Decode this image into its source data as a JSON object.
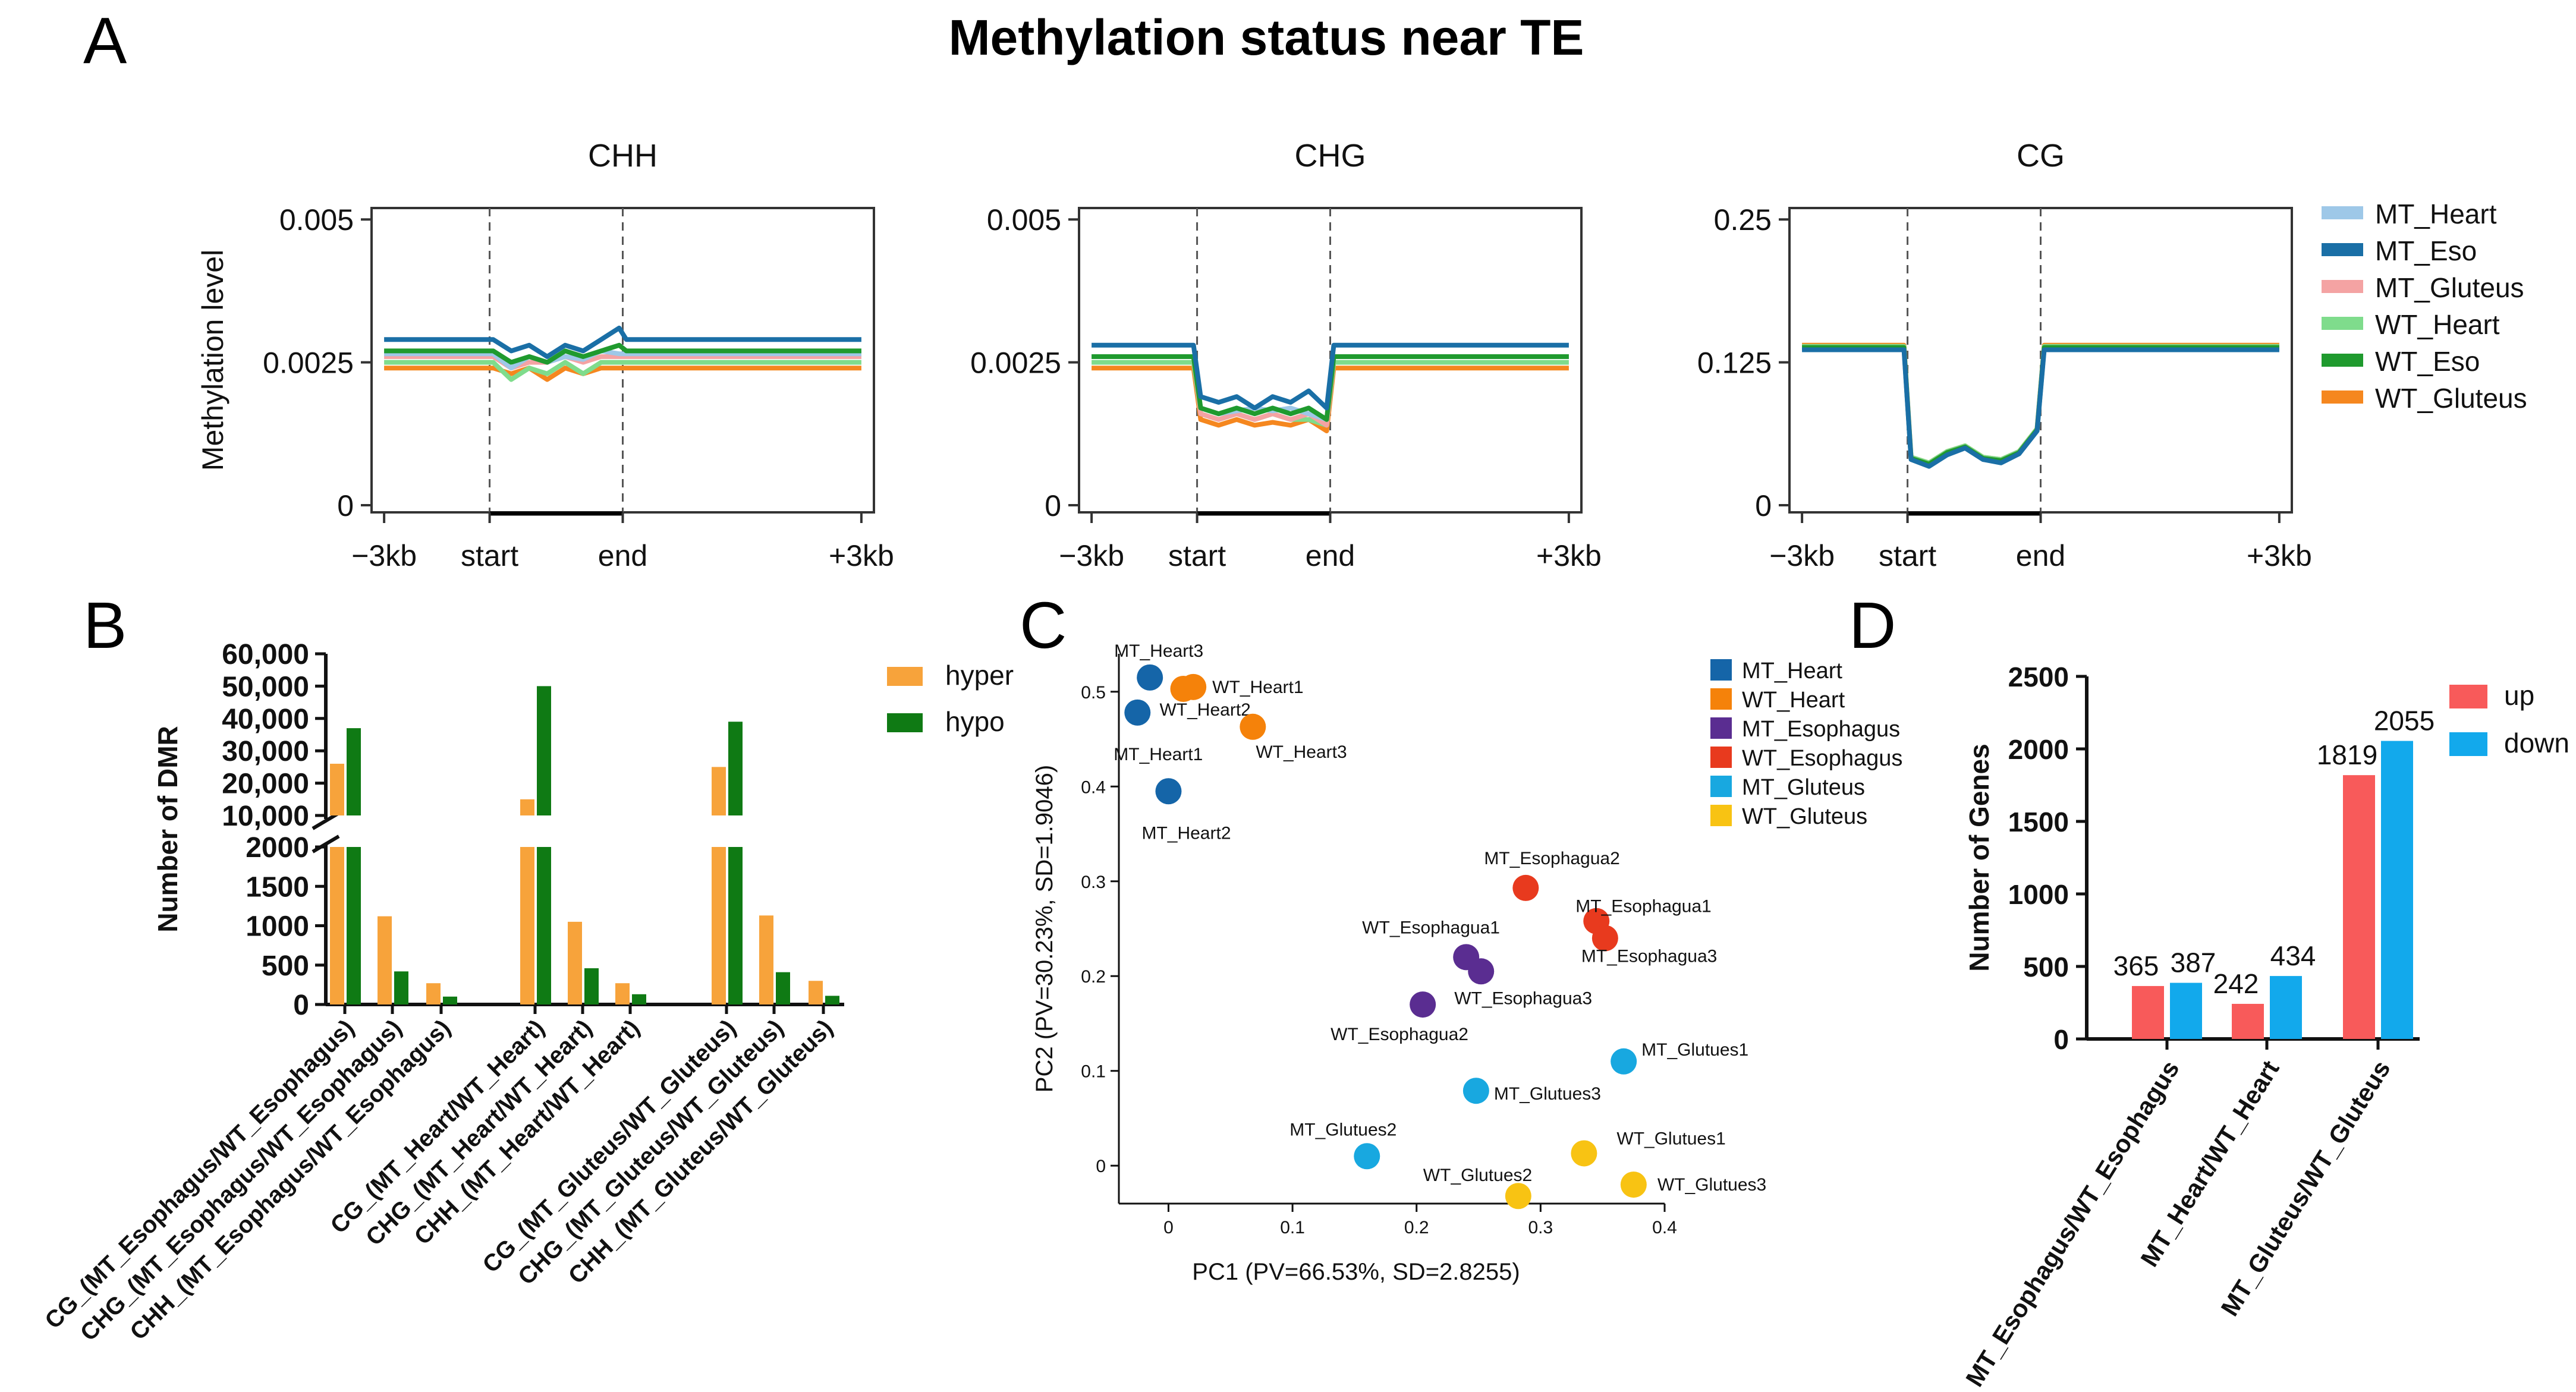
{
  "title": "Methylation status near TE",
  "panel_letters": {
    "A": "A",
    "B": "B",
    "C": "C",
    "D": "D"
  },
  "colors": {
    "MT_Heart": "#9ec8e8",
    "MT_Eso": "#1a6fa6",
    "MT_Gluteus": "#f4a3a3",
    "WT_Heart": "#7fdc8c",
    "WT_Eso": "#1f9a2e",
    "WT_Gluteus": "#f5871f",
    "hyper": "#f7a33b",
    "hypo": "#0f7a14",
    "pca_MT_Heart": "#1565a8",
    "pca_WT_Heart": "#f5820a",
    "pca_MT_Esophagus": "#5a2d91",
    "pca_WT_Esophagus": "#e83a1e",
    "pca_MT_Gluteus": "#18a8e0",
    "pca_WT_Gluteus": "#f8c313",
    "up": "#f85a5a",
    "down": "#12a9ec"
  },
  "chart_data": [
    {
      "id": "A1",
      "type": "line",
      "title": "CHH",
      "ylabel": "Methylation level",
      "x_ticks": [
        "−3kb",
        "start",
        "end",
        "+3kb"
      ],
      "y_ticks": [
        "0.005",
        "0.0025",
        "0"
      ],
      "ylim": [
        0,
        0.0052
      ],
      "series": [
        {
          "name": "MT_Heart",
          "flank": 0.00265,
          "body": [
            0.00265,
            0.0024,
            0.0026,
            0.0025,
            0.0026,
            0.00255,
            0.0027,
            0.00265
          ]
        },
        {
          "name": "MT_Eso",
          "flank": 0.0029,
          "body": [
            0.0029,
            0.0027,
            0.0028,
            0.0026,
            0.0028,
            0.0027,
            0.0029,
            0.0031
          ]
        },
        {
          "name": "MT_Gluteus",
          "flank": 0.0026,
          "body": [
            0.0026,
            0.0024,
            0.0025,
            0.0025,
            0.0026,
            0.0025,
            0.0026,
            0.0026
          ]
        },
        {
          "name": "WT_Heart",
          "flank": 0.0025,
          "body": [
            0.0025,
            0.0022,
            0.0024,
            0.0023,
            0.0025,
            0.0023,
            0.0025,
            0.0025
          ]
        },
        {
          "name": "WT_Eso",
          "flank": 0.0027,
          "body": [
            0.0027,
            0.0025,
            0.0026,
            0.0025,
            0.0027,
            0.0026,
            0.0027,
            0.0028
          ]
        },
        {
          "name": "WT_Gluteus",
          "flank": 0.0024,
          "body": [
            0.0024,
            0.0023,
            0.0024,
            0.0022,
            0.0024,
            0.0023,
            0.0024,
            0.0024
          ]
        }
      ]
    },
    {
      "id": "A2",
      "type": "line",
      "title": "CHG",
      "ylabel": "",
      "x_ticks": [
        "−3kb",
        "start",
        "end",
        "+3kb"
      ],
      "y_ticks": [
        "0.005",
        "0.0025",
        "0"
      ],
      "ylim": [
        0,
        0.0052
      ],
      "series": [
        {
          "name": "MT_Heart",
          "flank": 0.0026,
          "body": [
            0.0017,
            0.0016,
            0.00165,
            0.0017,
            0.00165,
            0.0017,
            0.0016,
            0.0015
          ]
        },
        {
          "name": "MT_Eso",
          "flank": 0.0028,
          "body": [
            0.0019,
            0.0018,
            0.0019,
            0.0017,
            0.0019,
            0.0018,
            0.002,
            0.0017
          ]
        },
        {
          "name": "MT_Gluteus",
          "flank": 0.0026,
          "body": [
            0.0016,
            0.0015,
            0.0016,
            0.0015,
            0.0016,
            0.0015,
            0.0016,
            0.0014
          ]
        },
        {
          "name": "WT_Heart",
          "flank": 0.0025,
          "body": [
            0.0016,
            0.0015,
            0.0016,
            0.0015,
            0.0016,
            0.0015,
            0.0015,
            0.0014
          ]
        },
        {
          "name": "WT_Eso",
          "flank": 0.0026,
          "body": [
            0.0017,
            0.0016,
            0.0017,
            0.0016,
            0.0017,
            0.0016,
            0.0017,
            0.0015
          ]
        },
        {
          "name": "WT_Gluteus",
          "flank": 0.0024,
          "body": [
            0.0015,
            0.0014,
            0.0015,
            0.0014,
            0.00145,
            0.0014,
            0.0015,
            0.0013
          ]
        }
      ]
    },
    {
      "id": "A3",
      "type": "line",
      "title": "CG",
      "ylabel": "",
      "x_ticks": [
        "−3kb",
        "start",
        "end",
        "+3kb"
      ],
      "y_ticks": [
        "0.25",
        "0.125",
        "0"
      ],
      "ylim": [
        0,
        0.26
      ],
      "series": [
        {
          "name": "MT_Heart",
          "flank": 0.137,
          "body": [
            0.04,
            0.035,
            0.045,
            0.05,
            0.04,
            0.038,
            0.045,
            0.065
          ]
        },
        {
          "name": "MT_Eso",
          "flank": 0.136,
          "body": [
            0.04,
            0.034,
            0.044,
            0.05,
            0.04,
            0.037,
            0.045,
            0.065
          ]
        },
        {
          "name": "MT_Gluteus",
          "flank": 0.138,
          "body": [
            0.041,
            0.036,
            0.046,
            0.051,
            0.041,
            0.039,
            0.046,
            0.066
          ]
        },
        {
          "name": "WT_Heart",
          "flank": 0.139,
          "body": [
            0.042,
            0.037,
            0.047,
            0.052,
            0.042,
            0.04,
            0.047,
            0.067
          ]
        },
        {
          "name": "WT_Eso",
          "flank": 0.138,
          "body": [
            0.041,
            0.036,
            0.046,
            0.051,
            0.041,
            0.039,
            0.046,
            0.066
          ]
        },
        {
          "name": "WT_Gluteus",
          "flank": 0.14,
          "body": [
            0.042,
            0.037,
            0.047,
            0.052,
            0.042,
            0.04,
            0.047,
            0.067
          ]
        }
      ]
    },
    {
      "id": "B",
      "type": "bar",
      "ylabel": "Number of DMR",
      "y_ticks_upper": [
        "60,000",
        "50,000",
        "40,000",
        "30,000",
        "20,000",
        "10,000"
      ],
      "y_ticks_lower": [
        "2000",
        "1500",
        "1000",
        "500",
        "0"
      ],
      "categories": [
        "CG_(MT_Esophagus/WT_Esophagus)",
        "CHG_(MT_Esophagus/WT_Esophagus)",
        "CHH_(MT_Esophagus/WT_Esophagus)",
        "CG_(MT_Heart/WT_Heart)",
        "CHG_(MT_Heart/WT_Heart)",
        "CHH_(MT_Heart/WT_Heart)",
        "CG_(MT_Gluteus/WT_Gluteus)",
        "CHG_(MT_Gluteus/WT_Gluteus)",
        "CHH_(MT_Gluteus/WT_Gluteus)"
      ],
      "series": [
        {
          "name": "hyper",
          "values": [
            26000,
            1120,
            270,
            15000,
            1050,
            270,
            25000,
            1130,
            300
          ]
        },
        {
          "name": "hypo",
          "values": [
            37000,
            420,
            100,
            50000,
            460,
            130,
            39000,
            410,
            110
          ]
        }
      ]
    },
    {
      "id": "C",
      "type": "scatter",
      "xlabel": "PC1 (PV=66.53%, SD=2.8255)",
      "ylabel": "PC2 (PV=30.23%, SD=1.9046)",
      "x_ticks": [
        "0",
        "0.1",
        "0.2",
        "0.3",
        "0.4"
      ],
      "y_ticks": [
        "0",
        "0.1",
        "0.2",
        "0.3",
        "0.4",
        "0.5"
      ],
      "xlim": [
        -0.04,
        0.4
      ],
      "ylim": [
        -0.04,
        0.54
      ],
      "legend": [
        "MT_Heart",
        "WT_Heart",
        "MT_Esophagus",
        "WT_Esophagus",
        "MT_Gluteus",
        "WT_Gluteus"
      ],
      "points": [
        {
          "label": "MT_Heart3",
          "group": "MT_Heart",
          "x": -0.015,
          "y": 0.515
        },
        {
          "label": "MT_Heart1",
          "group": "MT_Heart",
          "x": -0.025,
          "y": 0.478
        },
        {
          "label": "MT_Heart2",
          "group": "MT_Heart",
          "x": 0.0,
          "y": 0.395
        },
        {
          "label": "WT_Heart1",
          "group": "WT_Heart",
          "x": 0.02,
          "y": 0.505
        },
        {
          "label": "WT_Heart2",
          "group": "WT_Heart",
          "x": 0.012,
          "y": 0.503
        },
        {
          "label": "WT_Heart3",
          "group": "WT_Heart",
          "x": 0.068,
          "y": 0.463
        },
        {
          "label": "WT_Esophagua1",
          "group": "MT_Esophagus",
          "x": 0.24,
          "y": 0.22
        },
        {
          "label": "WT_Esophagua3",
          "group": "MT_Esophagus",
          "x": 0.252,
          "y": 0.205
        },
        {
          "label": "WT_Esophagua2",
          "group": "MT_Esophagus",
          "x": 0.205,
          "y": 0.17
        },
        {
          "label": "MT_Esophagua2",
          "group": "WT_Esophagus",
          "x": 0.288,
          "y": 0.293
        },
        {
          "label": "MT_Esophagua1",
          "group": "WT_Esophagus",
          "x": 0.345,
          "y": 0.258
        },
        {
          "label": "MT_Esophagua3",
          "group": "WT_Esophagus",
          "x": 0.352,
          "y": 0.24
        },
        {
          "label": "MT_Glutues1",
          "group": "MT_Gluteus",
          "x": 0.367,
          "y": 0.11
        },
        {
          "label": "MT_Glutues3",
          "group": "MT_Gluteus",
          "x": 0.248,
          "y": 0.079
        },
        {
          "label": "MT_Glutues2",
          "group": "MT_Gluteus",
          "x": 0.16,
          "y": 0.01
        },
        {
          "label": "WT_Glutues1",
          "group": "WT_Gluteus",
          "x": 0.335,
          "y": 0.013
        },
        {
          "label": "WT_Glutues2",
          "group": "WT_Gluteus",
          "x": 0.282,
          "y": -0.032
        },
        {
          "label": "WT_Glutues3",
          "group": "WT_Gluteus",
          "x": 0.375,
          "y": -0.02
        }
      ]
    },
    {
      "id": "D",
      "type": "bar",
      "ylabel": "Number of Genes",
      "y_ticks": [
        "0",
        "500",
        "1000",
        "1500",
        "2000",
        "2500"
      ],
      "ylim": [
        0,
        2500
      ],
      "categories": [
        "MT_Esophagus/WT_Esophagus",
        "MT_Heart/WT_Heart",
        "MT_Gluteus/WT_Gluteus"
      ],
      "series": [
        {
          "name": "up",
          "values": [
            365,
            242,
            1819
          ]
        },
        {
          "name": "down",
          "values": [
            387,
            434,
            2055
          ]
        }
      ],
      "value_labels": [
        [
          "365",
          "387"
        ],
        [
          "242",
          "434"
        ],
        [
          "1819",
          "2055"
        ]
      ]
    }
  ]
}
